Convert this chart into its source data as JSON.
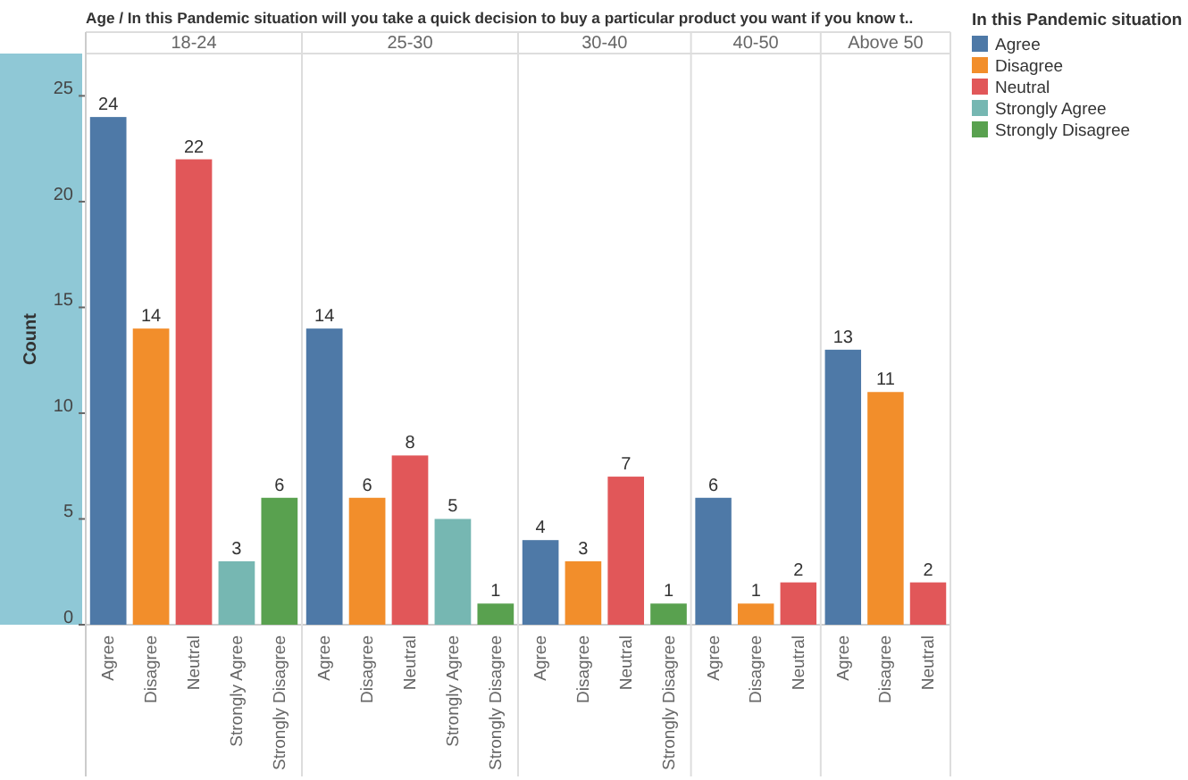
{
  "chart_data": [
    {
      "type": "bar",
      "title": "18-24",
      "annotations": [
        "Age / In this Pandemic situation will you take a quick decision to buy a particular product you want if you know t.."
      ],
      "ylabel": "Count",
      "legend_title": "In this Pandemic situation",
      "categories": [
        "Agree",
        "Disagree",
        "Neutral",
        "Strongly Agree",
        "Strongly Disagree"
      ],
      "values": [
        24,
        14,
        22,
        3,
        6
      ],
      "colors": [
        "#4e79a7",
        "#f28e2b",
        "#e15759",
        "#76b7b2",
        "#59a14f"
      ],
      "data_labels": true,
      "ylim": [
        0,
        27
      ],
      "yticks": [
        0,
        5,
        10,
        15,
        20,
        25
      ]
    },
    {
      "type": "bar",
      "title": "25-30",
      "categories": [
        "Agree",
        "Disagree",
        "Neutral",
        "Strongly Agree",
        "Strongly Disagree"
      ],
      "values": [
        14,
        6,
        8,
        5,
        1
      ],
      "colors": [
        "#4e79a7",
        "#f28e2b",
        "#e15759",
        "#76b7b2",
        "#59a14f"
      ],
      "data_labels": true,
      "ylim": [
        0,
        27
      ],
      "tick_labels": "x"
    },
    {
      "type": "bar",
      "title": "30-40",
      "categories": [
        "Agree",
        "Disagree",
        "Neutral",
        "Strongly Disagree"
      ],
      "values": [
        4,
        3,
        7,
        1
      ],
      "colors": [
        "#4e79a7",
        "#f28e2b",
        "#e15759",
        "#59a14f"
      ],
      "data_labels": true,
      "ylim": [
        0,
        27
      ],
      "tick_labels": "x"
    },
    {
      "type": "bar",
      "title": "40-50",
      "categories": [
        "Agree",
        "Disagree",
        "Neutral"
      ],
      "values": [
        6,
        1,
        2
      ],
      "colors": [
        "#4e79a7",
        "#f28e2b",
        "#e15759"
      ],
      "data_labels": true,
      "ylim": [
        0,
        27
      ],
      "tick_labels": "x"
    },
    {
      "type": "bar",
      "title": "Above 50",
      "categories": [
        "Agree",
        "Disagree",
        "Neutral"
      ],
      "values": [
        13,
        11,
        2
      ],
      "colors": [
        "#4e79a7",
        "#f28e2b",
        "#e15759"
      ],
      "data_labels": true,
      "ylim": [
        0,
        27
      ],
      "tick_labels": "x"
    }
  ]
}
